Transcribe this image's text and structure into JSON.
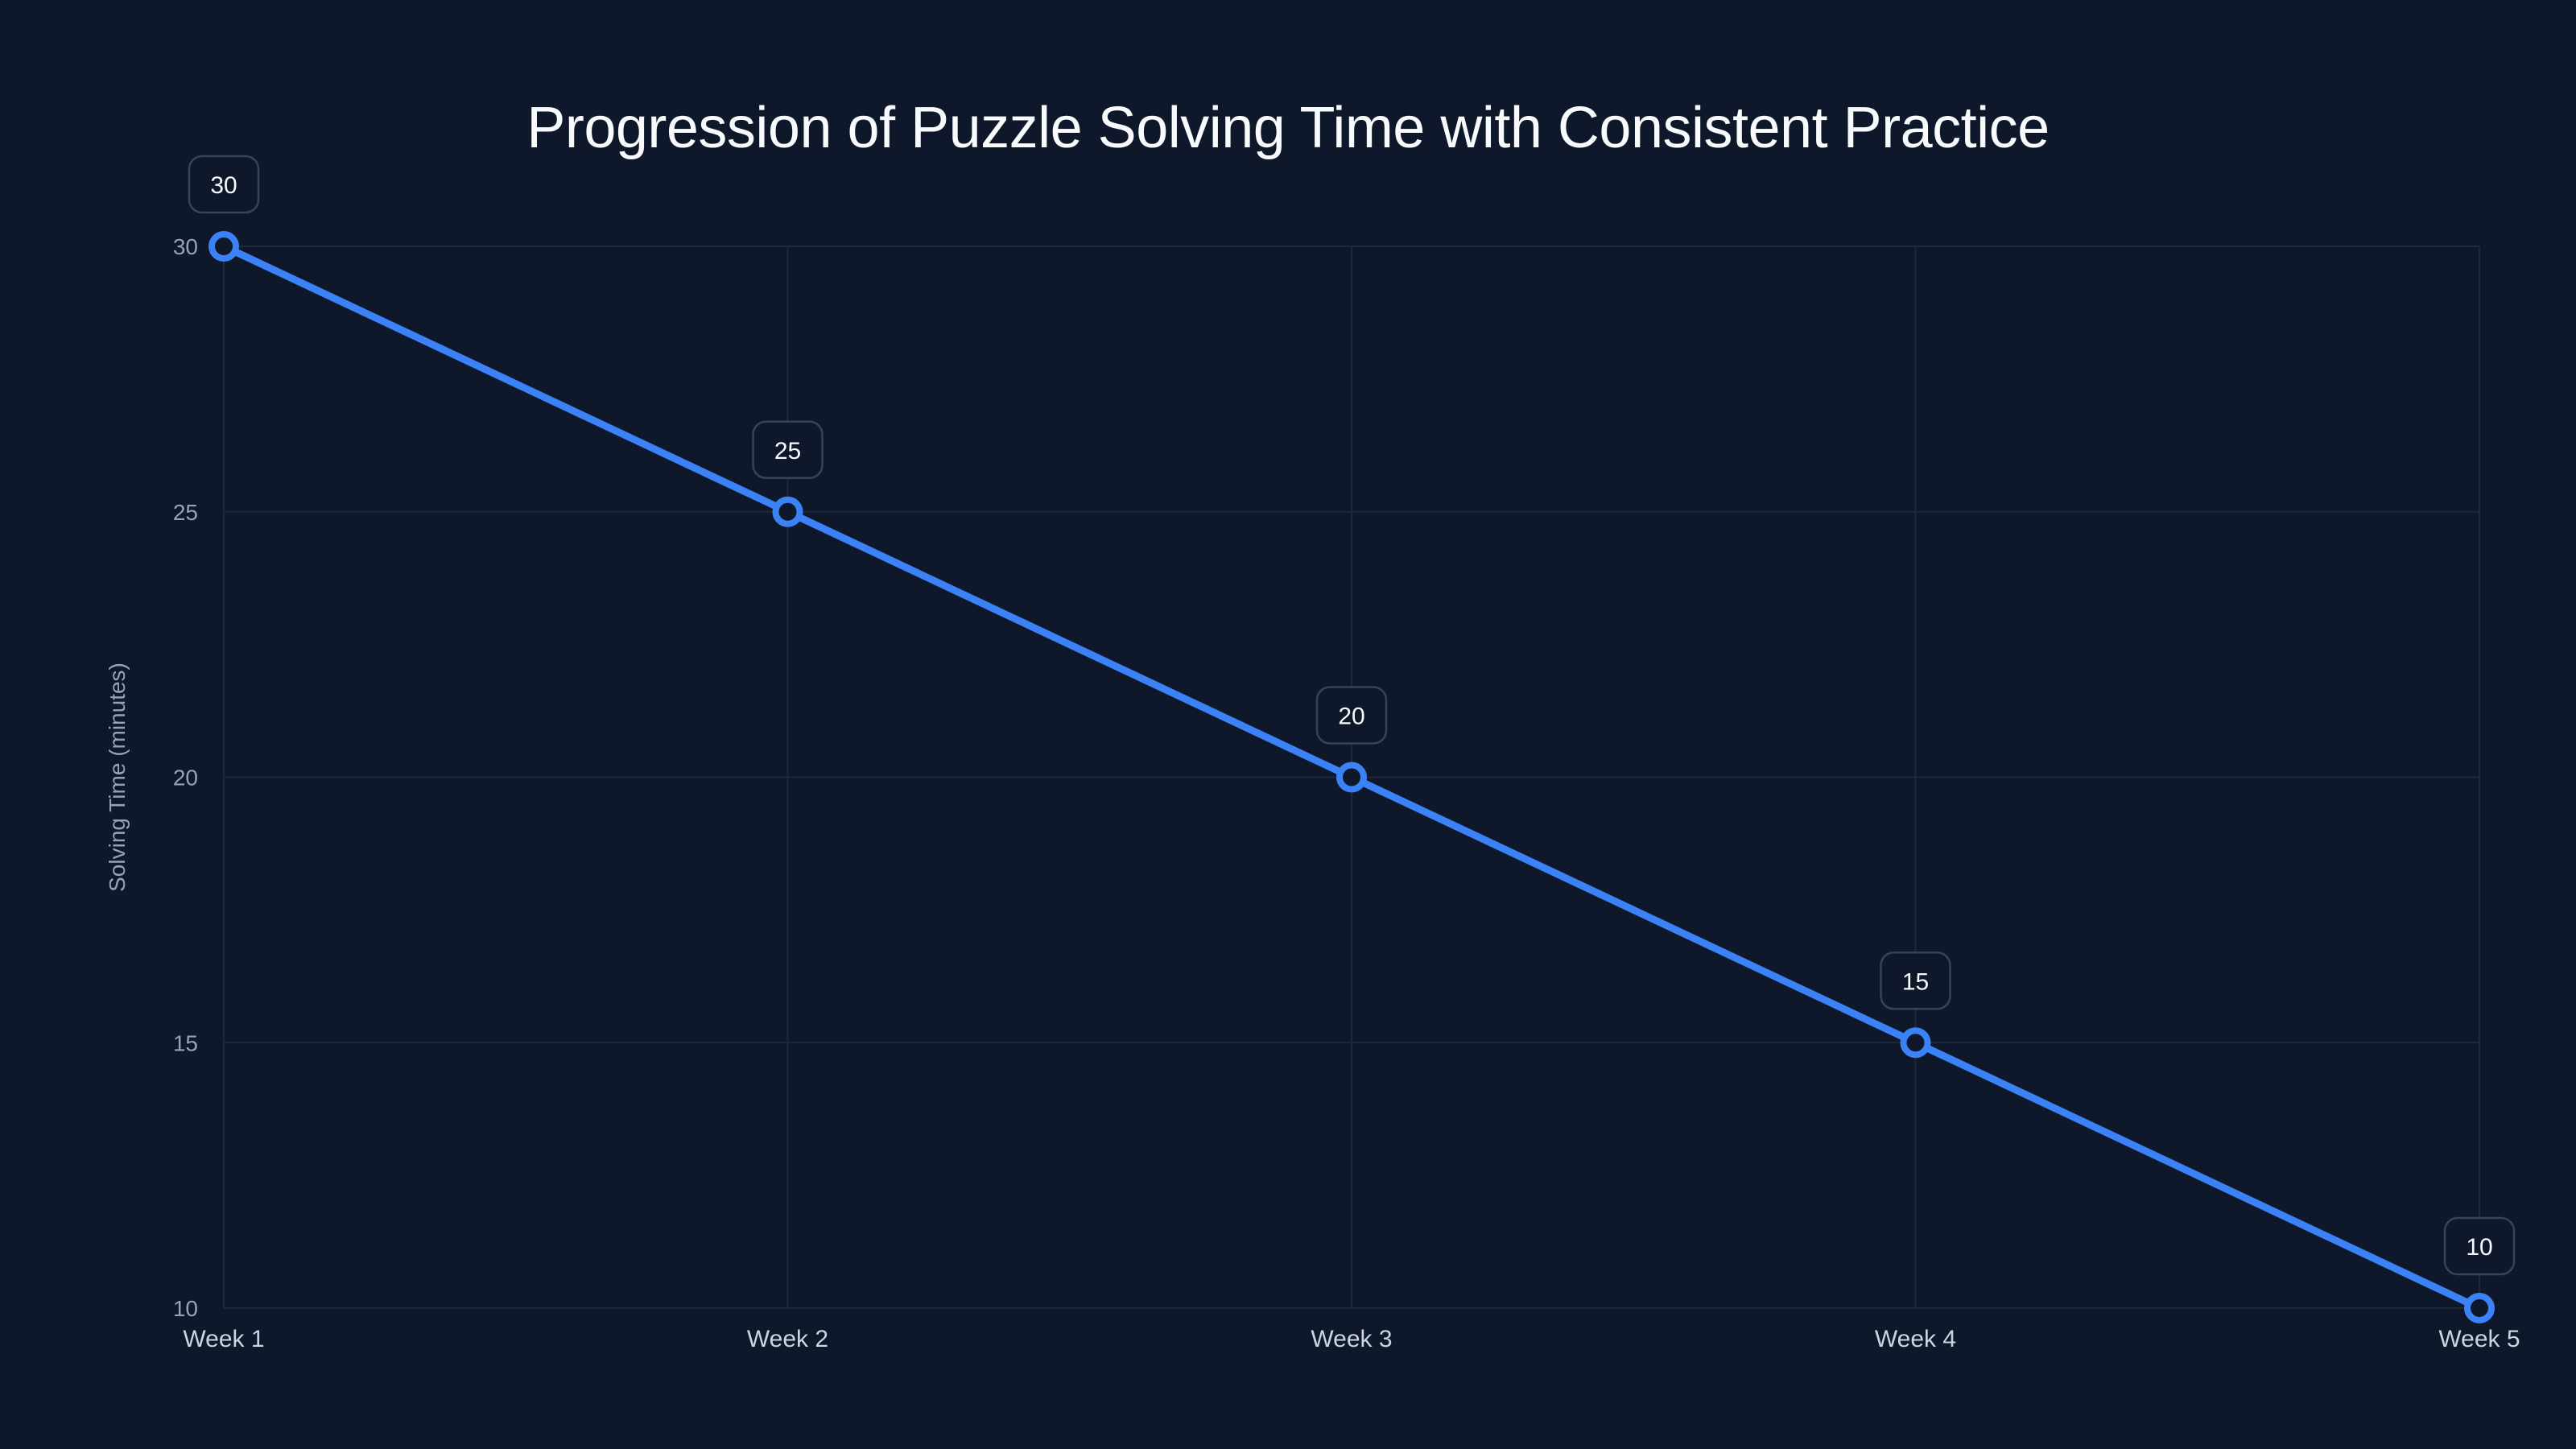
{
  "chart_data": {
    "type": "line",
    "title": "Progression of Puzzle Solving Time with Consistent Practice",
    "xlabel": "",
    "ylabel": "Solving Time (minutes)",
    "categories": [
      "Week 1",
      "Week 2",
      "Week 3",
      "Week 4",
      "Week 5"
    ],
    "series": [
      {
        "name": "Solving Time",
        "values": [
          30,
          25,
          20,
          15,
          10
        ],
        "color": "#3b82f6"
      }
    ],
    "ylim": [
      10,
      30
    ],
    "yticks": [
      10,
      15,
      20,
      25,
      30
    ],
    "grid": true,
    "legend": "none",
    "data_labels": true
  },
  "colors": {
    "background": "#0f172a",
    "line": "#3b82f6",
    "grid": "#1e293b",
    "label_border": "#3a4356"
  }
}
